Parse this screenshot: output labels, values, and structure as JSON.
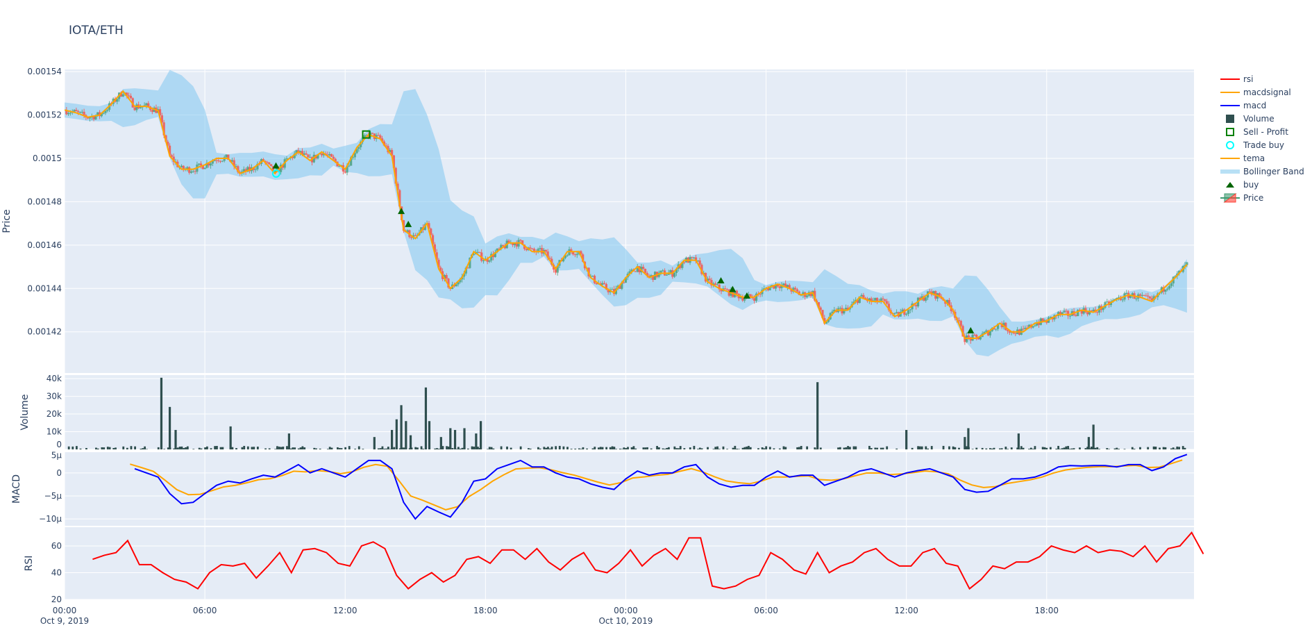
{
  "title": "IOTA/ETH",
  "legend": [
    {
      "name": "rsi",
      "kind": "line",
      "color": "#FF0000"
    },
    {
      "name": "macdsignal",
      "kind": "line",
      "color": "#FFA500"
    },
    {
      "name": "macd",
      "kind": "line",
      "color": "#0000FF"
    },
    {
      "name": "Volume",
      "kind": "bar",
      "color": "#2F4F4F"
    },
    {
      "name": "Sell - Profit",
      "kind": "square-open",
      "color": "#008000"
    },
    {
      "name": "Trade buy",
      "kind": "circle-open",
      "color": "#00FFFF"
    },
    {
      "name": "tema",
      "kind": "line",
      "color": "#FFA500"
    },
    {
      "name": "Bollinger Band",
      "kind": "fill",
      "color": "#B8E0F5"
    },
    {
      "name": "buy",
      "kind": "triangle",
      "color": "#006400"
    },
    {
      "name": "Price",
      "kind": "candle",
      "color": "#3D9970"
    }
  ],
  "chart_data": {
    "type": "candlestick-multi-panel",
    "x_axis": {
      "start": "2019-10-09 00:00",
      "range_hours": [
        0,
        48.3
      ],
      "ticks": [
        {
          "h": 0,
          "label": "00:00",
          "sub": "Oct 9, 2019"
        },
        {
          "h": 6,
          "label": "06:00",
          "sub": ""
        },
        {
          "h": 12,
          "label": "12:00",
          "sub": ""
        },
        {
          "h": 18,
          "label": "18:00",
          "sub": ""
        },
        {
          "h": 24,
          "label": "00:00",
          "sub": "Oct 10, 2019"
        },
        {
          "h": 30,
          "label": "06:00",
          "sub": ""
        },
        {
          "h": 36,
          "label": "12:00",
          "sub": ""
        },
        {
          "h": 42,
          "label": "18:00",
          "sub": ""
        }
      ],
      "grid": true
    },
    "price": {
      "ylabel": "Price",
      "ylim": [
        0.001401,
        0.001541
      ],
      "ticks": [
        {
          "v": 0.00142,
          "label": "0.00142"
        },
        {
          "v": 0.00144,
          "label": "0.00144"
        },
        {
          "v": 0.00146,
          "label": "0.00146"
        },
        {
          "v": 0.00148,
          "label": "0.00148"
        },
        {
          "v": 0.0015,
          "label": "0.0015"
        },
        {
          "v": 0.00152,
          "label": "0.00152"
        },
        {
          "v": 0.00154,
          "label": "0.00154"
        }
      ],
      "step_hours": 0.5,
      "close": [
        0.0015223,
        0.001521,
        0.001519,
        0.00152,
        0.001525,
        0.001531,
        0.001524,
        0.001524,
        0.001522,
        0.001501,
        0.001495,
        0.001495,
        0.001497,
        0.0015,
        0.0015,
        0.001493,
        0.001495,
        0.001499,
        0.001493,
        0.001499,
        0.001503,
        0.001499,
        0.001503,
        0.001499,
        0.001495,
        0.001505,
        0.001511,
        0.001509,
        0.001501,
        0.001467,
        0.001463,
        0.00147,
        0.001449,
        0.00144,
        0.001445,
        0.001457,
        0.001453,
        0.001457,
        0.001461,
        0.001461,
        0.001457,
        0.001457,
        0.001449,
        0.001457,
        0.001457,
        0.001445,
        0.001441,
        0.001438,
        0.001445,
        0.00145,
        0.001445,
        0.001447,
        0.001447,
        0.001453,
        0.001453,
        0.001443,
        0.00144,
        0.001438,
        0.001436,
        0.001436,
        0.00144,
        0.001442,
        0.00144,
        0.001437,
        0.001438,
        0.001424,
        0.00143,
        0.00143,
        0.001436,
        0.001434,
        0.001434,
        0.001427,
        0.00143,
        0.001434,
        0.001438,
        0.001436,
        0.00143,
        0.001417,
        0.001417,
        0.00142,
        0.001424,
        0.00142,
        0.00142,
        0.001424,
        0.001425,
        0.001428,
        0.001428,
        0.00143,
        0.001429,
        0.001432,
        0.001435,
        0.001437,
        0.001436,
        0.001434,
        0.00144,
        0.001445,
        0.001451
      ],
      "buy": [
        [
          9.04,
          0.001495
        ],
        [
          14.4,
          0.001474
        ],
        [
          14.7,
          0.001468
        ],
        [
          28.07,
          0.001442
        ],
        [
          28.57,
          0.001438
        ],
        [
          29.18,
          0.001435
        ],
        [
          38.75,
          0.001419
        ]
      ],
      "trade_buy": [
        [
          9.05,
          0.001493
        ]
      ],
      "sell_profit": [
        [
          12.9,
          0.001511
        ]
      ]
    },
    "volume": {
      "ylabel": "Volume",
      "ylim": [
        0,
        42000
      ],
      "ticks": [
        {
          "v": 0,
          "label": "0"
        },
        {
          "v": 10000,
          "label": "10k"
        },
        {
          "v": 20000,
          "label": "20k"
        },
        {
          "v": 30000,
          "label": "30k"
        },
        {
          "v": 40000,
          "label": "40k"
        }
      ],
      "spikes": [
        [
          4.14,
          40500
        ],
        [
          4.5,
          24000
        ],
        [
          4.75,
          11000
        ],
        [
          7.1,
          13000
        ],
        [
          9.6,
          9000
        ],
        [
          13.25,
          7000
        ],
        [
          14.0,
          11000
        ],
        [
          14.2,
          17000
        ],
        [
          14.4,
          25000
        ],
        [
          14.6,
          16000
        ],
        [
          14.8,
          8000
        ],
        [
          15.45,
          35000
        ],
        [
          15.6,
          16000
        ],
        [
          16.1,
          7000
        ],
        [
          16.5,
          12000
        ],
        [
          16.7,
          11000
        ],
        [
          17.1,
          12000
        ],
        [
          17.6,
          9000
        ],
        [
          17.8,
          16000
        ],
        [
          32.2,
          38000
        ],
        [
          36.0,
          11000
        ],
        [
          38.5,
          7000
        ],
        [
          38.65,
          12000
        ],
        [
          40.8,
          9000
        ],
        [
          43.8,
          7000
        ],
        [
          44.0,
          14000
        ]
      ]
    },
    "macd": {
      "ylabel": "MACD",
      "unit": "µ",
      "ylim": [
        -11.5,
        4.5
      ],
      "ticks": [
        {
          "v": 5,
          "label": "5µ"
        },
        {
          "v": 0,
          "label": "0"
        },
        {
          "v": -5,
          "label": "−5µ"
        },
        {
          "v": -10,
          "label": "−10µ"
        }
      ],
      "start_hour": 3,
      "step_hours": 0.5,
      "macd": [
        0.9,
        0,
        -0.9,
        -4.5,
        -6.7,
        -6.4,
        -4.5,
        -2.7,
        -1.8,
        -2.2,
        -1.3,
        -0.5,
        -0.9,
        0.4,
        1.8,
        0,
        0.9,
        0,
        -0.9,
        0.9,
        2.7,
        2.7,
        0.9,
        -6.4,
        -10,
        -7.3,
        -8.5,
        -9.6,
        -6.4,
        -1.8,
        -1.3,
        0.9,
        1.8,
        2.7,
        1.3,
        1.3,
        0,
        -0.9,
        -1.3,
        -2.4,
        -3.1,
        -3.6,
        -1.3,
        0.4,
        -0.5,
        0,
        0,
        1.3,
        1.8,
        -0.9,
        -2.4,
        -3.1,
        -2.7,
        -2.7,
        -0.9,
        0.4,
        -0.9,
        -0.5,
        -0.5,
        -2.7,
        -1.8,
        -0.9,
        0.4,
        0.9,
        0,
        -0.9,
        0,
        0.5,
        0.9,
        0,
        -0.9,
        -3.6,
        -4.2,
        -4,
        -2.7,
        -1.3,
        -1.3,
        -0.9,
        0,
        1.3,
        1.6,
        1.5,
        1.6,
        1.6,
        1.3,
        1.8,
        1.8,
        0.5,
        1.3,
        3.1,
        4.0
      ]
    },
    "rsi": {
      "ylabel": "RSI",
      "ylim": [
        20,
        74
      ],
      "ticks": [
        {
          "v": 20,
          "label": "20"
        },
        {
          "v": 40,
          "label": "40"
        },
        {
          "v": 60,
          "label": "60"
        }
      ],
      "start_hour": 1.2,
      "step_hours": 0.5,
      "values": [
        50,
        53,
        55,
        64,
        46,
        46,
        40,
        35,
        33,
        28,
        40,
        46,
        45,
        47,
        36,
        45,
        55,
        40,
        57,
        58,
        55,
        47,
        45,
        60,
        63,
        58,
        38,
        28,
        35,
        40,
        33,
        38,
        50,
        52,
        47,
        57,
        57,
        50,
        58,
        48,
        42,
        50,
        55,
        42,
        40,
        47,
        57,
        45,
        53,
        58,
        50,
        66,
        66,
        30,
        28,
        30,
        35,
        38,
        55,
        50,
        42,
        39,
        55,
        40,
        45,
        48,
        55,
        58,
        50,
        45,
        45,
        55,
        58,
        47,
        45,
        28,
        35,
        45,
        43,
        48,
        48,
        52,
        60,
        57,
        55,
        60,
        55,
        57,
        56,
        52,
        60,
        48,
        58,
        60,
        70,
        54
      ]
    }
  }
}
